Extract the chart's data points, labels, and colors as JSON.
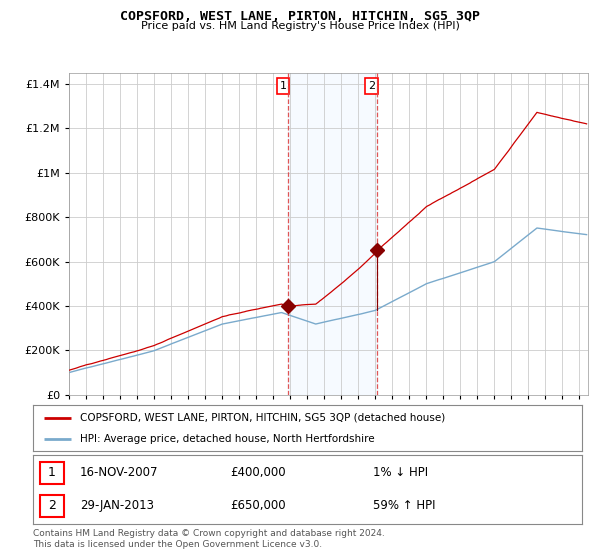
{
  "title": "COPSFORD, WEST LANE, PIRTON, HITCHIN, SG5 3QP",
  "subtitle": "Price paid vs. HM Land Registry's House Price Index (HPI)",
  "ylim": [
    0,
    1450000
  ],
  "yticks": [
    0,
    200000,
    400000,
    600000,
    800000,
    1000000,
    1200000,
    1400000
  ],
  "ytick_labels": [
    "£0",
    "£200K",
    "£400K",
    "£600K",
    "£800K",
    "£1M",
    "£1.2M",
    "£1.4M"
  ],
  "xstart": 1995,
  "xend": 2025.5,
  "sale1_date": 2007.88,
  "sale1_price": 400000,
  "sale2_date": 2013.08,
  "sale2_price": 650000,
  "legend_property": "COPSFORD, WEST LANE, PIRTON, HITCHIN, SG5 3QP (detached house)",
  "legend_hpi": "HPI: Average price, detached house, North Hertfordshire",
  "ann1_date": "16-NOV-2007",
  "ann1_price": "£400,000",
  "ann1_pct": "1% ↓ HPI",
  "ann2_date": "29-JAN-2013",
  "ann2_price": "£650,000",
  "ann2_pct": "59% ↑ HPI",
  "footer": "Contains HM Land Registry data © Crown copyright and database right 2024.\nThis data is licensed under the Open Government Licence v3.0.",
  "property_color": "#cc0000",
  "hpi_color": "#7aaacc",
  "sale_marker_color": "#880000",
  "dashed_line_color": "#dd4444",
  "span_color": "#ddeeff",
  "background_color": "#ffffff",
  "grid_color": "#cccccc"
}
